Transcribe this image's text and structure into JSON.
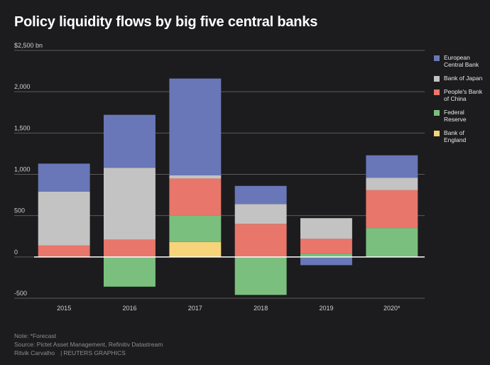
{
  "title": "Policy liquidity flows by big five central banks",
  "chart_data": {
    "type": "bar",
    "stacked": true,
    "categories": [
      "2015",
      "2016",
      "2017",
      "2018",
      "2019",
      "2020*"
    ],
    "series": [
      {
        "name": "Bank of England",
        "color": "#f7d479",
        "values": [
          0,
          0,
          180,
          0,
          0,
          0
        ]
      },
      {
        "name": "Federal Reserve",
        "color": "#7bbf7e",
        "values": [
          0,
          -360,
          320,
          -460,
          40,
          350
        ]
      },
      {
        "name": "People's Bank of China",
        "color": "#e8766a",
        "values": [
          140,
          210,
          450,
          400,
          180,
          460
        ]
      },
      {
        "name": "Bank of Japan",
        "color": "#c3c3c3",
        "values": [
          650,
          870,
          40,
          240,
          250,
          150
        ]
      },
      {
        "name": "European Central Bank",
        "color": "#6977b8",
        "values": [
          340,
          640,
          1170,
          220,
          -100,
          270
        ]
      }
    ],
    "ylim": [
      -500,
      2500
    ],
    "yticks": [
      {
        "value": 2500,
        "label": "$2,500 bn"
      },
      {
        "value": 2000,
        "label": "2,000"
      },
      {
        "value": 1500,
        "label": "1,500"
      },
      {
        "value": 1000,
        "label": "1,000"
      },
      {
        "value": 500,
        "label": "500"
      },
      {
        "value": 0,
        "label": "0"
      },
      {
        "value": -500,
        "label": "-500"
      }
    ],
    "legend_order": [
      "European Central Bank",
      "Bank of Japan",
      "People's Bank of China",
      "Federal Reserve",
      "Bank of England"
    ],
    "legend_position": "right",
    "grid": true
  },
  "legend": [
    {
      "label": "European Central Bank",
      "color": "#6977b8"
    },
    {
      "label": "Bank of Japan",
      "color": "#c3c3c3"
    },
    {
      "label": "People's Bank of China",
      "color": "#e8766a"
    },
    {
      "label": "Federal Reserve",
      "color": "#7bbf7e"
    },
    {
      "label": "Bank of England",
      "color": "#f7d479"
    }
  ],
  "footer": {
    "note": "Note: *Forecast",
    "source": "Source: Pictet Asset Management, Refinitiv Datastream",
    "author": "Ritvik Carvalho",
    "brand": "REUTERS GRAPHICS"
  }
}
